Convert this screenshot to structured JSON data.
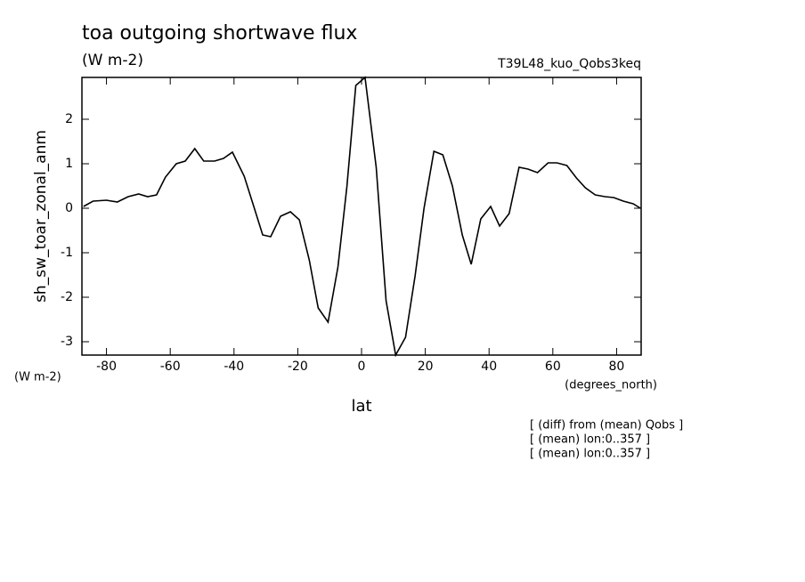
{
  "chart_data": {
    "type": "line",
    "title": "toa outgoing shortwave flux",
    "subtitle": "(W m-2)",
    "run_label": "T39L48_kuo_Qobs3keq",
    "y_label": "sh_sw_toar_zonal_anm",
    "y_units": "(W m-2)",
    "x_units": "(degrees_north)",
    "x_label": "lat",
    "notes": [
      "[ (diff) from (mean) Qobs ]",
      "[ (mean) lon:0..357 ]",
      "[ (mean) lon:0..357 ]"
    ],
    "x": [
      -87.2,
      -84.2,
      -80,
      -76.6,
      -73.2,
      -69.9,
      -67.1,
      -64.3,
      -61.5,
      -58.1,
      -55.3,
      -52.3,
      -49.5,
      -46.1,
      -43.3,
      -40.5,
      -36.8,
      -33.8,
      -31,
      -28.5,
      -25.4,
      -22.3,
      -19.5,
      -16.4,
      -13.6,
      -10.5,
      -7.4,
      -4.6,
      -1.8,
      1.1,
      4.6,
      7.7,
      10.7,
      13.8,
      16.8,
      19.6,
      22.7,
      25.5,
      28.5,
      31.6,
      34.4,
      37.4,
      40.5,
      43.3,
      46.3,
      49.4,
      52.2,
      55.2,
      58.5,
      61.3,
      64.4,
      67.4,
      70.2,
      73.3,
      76.4,
      79.1,
      82.1,
      85.2,
      87.5
    ],
    "series": [
      {
        "color": "#000000",
        "values": [
          0.04,
          0.16,
          0.18,
          0.14,
          0.26,
          0.32,
          0.26,
          0.3,
          0.7,
          1.0,
          1.06,
          1.34,
          1.06,
          1.06,
          1.12,
          1.26,
          0.72,
          0.04,
          -0.6,
          -0.64,
          -0.18,
          -0.08,
          -0.26,
          -1.16,
          -2.24,
          -2.56,
          -1.32,
          0.48,
          2.76,
          2.94,
          0.92,
          -2.08,
          -3.3,
          -2.9,
          -1.52,
          0,
          1.28,
          1.2,
          0.5,
          -0.6,
          -1.26,
          -0.24,
          0.04,
          -0.4,
          -0.12,
          0.92,
          0.88,
          0.8,
          1.02,
          1.02,
          0.96,
          0.68,
          0.46,
          0.3,
          0.26,
          0.24,
          0.16,
          0.1,
          0
        ]
      }
    ],
    "xlim": [
      -87.7,
      87.7
    ],
    "xticks": [
      -80,
      -60,
      -40,
      -20,
      0,
      20,
      40,
      60,
      80
    ],
    "ylim": [
      -3.3,
      2.94
    ],
    "yticks": [
      -3,
      -2,
      -1,
      0,
      1,
      2
    ],
    "grid": false
  }
}
